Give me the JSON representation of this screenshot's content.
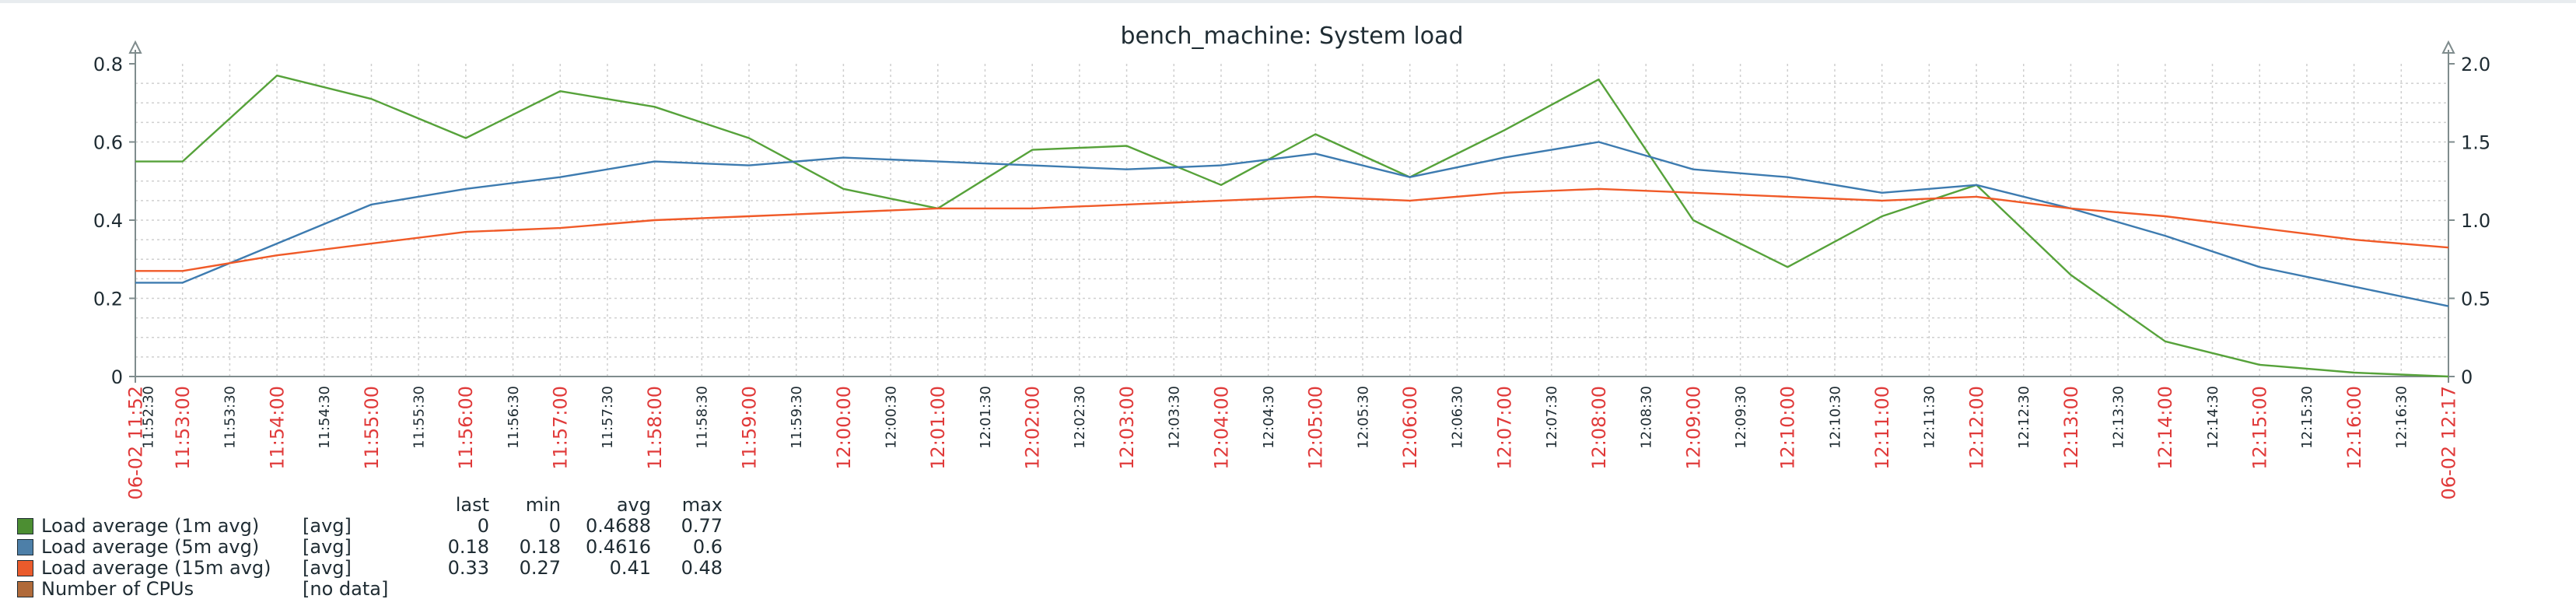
{
  "chart_data": {
    "type": "line",
    "title": "bench_machine: System load",
    "ylim_left": [
      0,
      0.8
    ],
    "ylim_right": [
      0,
      2.0
    ],
    "y_ticks_left": [
      "0",
      "0.2",
      "0.4",
      "0.6",
      "0.8"
    ],
    "y_ticks_right": [
      "0",
      "0.5",
      "1.0",
      "1.5",
      "2.0"
    ],
    "x_range": [
      "11:52:30",
      "12:17:00"
    ],
    "x_start_label": "06-02 11:52",
    "x_end_label": "06-02 12:17",
    "x_ticks_major": [
      "11:53:00",
      "11:54:00",
      "11:55:00",
      "11:56:00",
      "11:57:00",
      "11:58:00",
      "11:59:00",
      "12:00:00",
      "12:01:00",
      "12:02:00",
      "12:03:00",
      "12:04:00",
      "12:05:00",
      "12:06:00",
      "12:07:00",
      "12:08:00",
      "12:09:00",
      "12:10:00",
      "12:11:00",
      "12:12:00",
      "12:13:00",
      "12:14:00",
      "12:15:00",
      "12:16:00",
      "12:17:00"
    ],
    "x_ticks_minor": [
      "11:52:30",
      "11:53:30",
      "11:54:30",
      "11:55:30",
      "11:56:30",
      "11:57:30",
      "11:58:30",
      "11:59:30",
      "12:00:30",
      "12:01:30",
      "12:02:30",
      "12:03:30",
      "12:04:30",
      "12:05:30",
      "12:06:30",
      "12:07:30",
      "12:08:30",
      "12:09:30",
      "12:10:30",
      "12:11:30",
      "12:12:30",
      "12:13:30",
      "12:14:30",
      "12:15:30",
      "12:16:30"
    ],
    "grid": true,
    "series": [
      {
        "name": "Load average (1m avg)",
        "color": "#56a23a",
        "x": [
          "11:52:30",
          "11:53:00",
          "11:54:00",
          "11:55:00",
          "11:56:00",
          "11:57:00",
          "11:58:00",
          "11:59:00",
          "12:00:00",
          "12:01:00",
          "12:02:00",
          "12:03:00",
          "12:04:00",
          "12:05:00",
          "12:06:00",
          "12:07:00",
          "12:08:00",
          "12:09:00",
          "12:10:00",
          "12:11:00",
          "12:12:00",
          "12:13:00",
          "12:14:00",
          "12:15:00",
          "12:16:00",
          "12:17:00"
        ],
        "y": [
          0.55,
          0.55,
          0.77,
          0.71,
          0.61,
          0.73,
          0.69,
          0.61,
          0.48,
          0.43,
          0.58,
          0.59,
          0.49,
          0.62,
          0.51,
          0.63,
          0.76,
          0.4,
          0.28,
          0.41,
          0.49,
          0.26,
          0.09,
          0.03,
          0.01,
          0.0
        ]
      },
      {
        "name": "Load average (5m avg)",
        "color": "#3d7bb0",
        "x": [
          "11:52:30",
          "11:53:00",
          "11:54:00",
          "11:55:00",
          "11:56:00",
          "11:57:00",
          "11:58:00",
          "11:59:00",
          "12:00:00",
          "12:01:00",
          "12:02:00",
          "12:03:00",
          "12:04:00",
          "12:05:00",
          "12:06:00",
          "12:07:00",
          "12:08:00",
          "12:09:00",
          "12:10:00",
          "12:11:00",
          "12:12:00",
          "12:13:00",
          "12:14:00",
          "12:15:00",
          "12:16:00",
          "12:17:00"
        ],
        "y": [
          0.24,
          0.24,
          0.34,
          0.44,
          0.48,
          0.51,
          0.55,
          0.54,
          0.56,
          0.55,
          0.54,
          0.53,
          0.54,
          0.57,
          0.51,
          0.56,
          0.6,
          0.53,
          0.51,
          0.47,
          0.49,
          0.43,
          0.36,
          0.28,
          0.23,
          0.18
        ]
      },
      {
        "name": "Load average (15m avg)",
        "color": "#f05a28",
        "x": [
          "11:52:30",
          "11:53:00",
          "11:54:00",
          "11:55:00",
          "11:56:00",
          "11:57:00",
          "11:58:00",
          "11:59:00",
          "12:00:00",
          "12:01:00",
          "12:02:00",
          "12:03:00",
          "12:04:00",
          "12:05:00",
          "12:06:00",
          "12:07:00",
          "12:08:00",
          "12:09:00",
          "12:10:00",
          "12:11:00",
          "12:12:00",
          "12:13:00",
          "12:14:00",
          "12:15:00",
          "12:16:00",
          "12:17:00"
        ],
        "y": [
          0.27,
          0.27,
          0.31,
          0.34,
          0.37,
          0.38,
          0.4,
          0.41,
          0.42,
          0.43,
          0.43,
          0.44,
          0.45,
          0.46,
          0.45,
          0.47,
          0.48,
          0.47,
          0.46,
          0.45,
          0.46,
          0.43,
          0.41,
          0.38,
          0.35,
          0.33
        ]
      }
    ],
    "colors": {
      "axis": "#7f8c8d",
      "grid": "#cfcfcf",
      "text": "#1f2c33",
      "time_red": "#e03a3a",
      "title": "#1f2c33"
    }
  },
  "legend": {
    "headers": {
      "last": "last",
      "min": "min",
      "avg": "avg",
      "max": "max"
    },
    "items": [
      {
        "color": "#4c8e32",
        "name": "Load average (1m avg)",
        "func": "[avg]",
        "last": "0",
        "min": "0",
        "avg": "0.4688",
        "max": "0.77"
      },
      {
        "color": "#4d7fa8",
        "name": "Load average (5m avg)",
        "func": "[avg]",
        "last": "0.18",
        "min": "0.18",
        "avg": "0.4616",
        "max": "0.6"
      },
      {
        "color": "#ea5b2c",
        "name": "Load average (15m avg)",
        "func": "[avg]",
        "last": "0.33",
        "min": "0.27",
        "avg": "0.41",
        "max": "0.48"
      },
      {
        "color": "#b06a3a",
        "name": "Number of CPUs",
        "func": "[no data]"
      }
    ]
  }
}
